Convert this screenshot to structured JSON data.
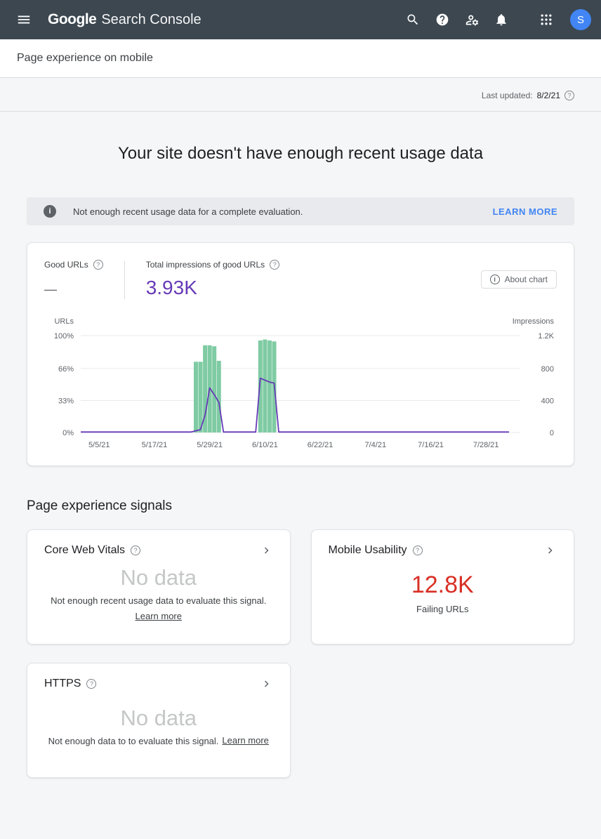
{
  "colors": {
    "header_bg": "#3C4750",
    "accent_blue": "#4285F4",
    "purple": "#673AB7",
    "no_data_gray": "#C4C7C5",
    "red": "#D93025",
    "green_bar": "#7FCBA3"
  },
  "glyphs": {
    "help": "?",
    "info": "i"
  },
  "topbar": {
    "logo_primary": "Google",
    "logo_secondary": "Search Console",
    "avatar_letter": "S"
  },
  "subheader": {
    "title": "Page experience on mobile"
  },
  "meta": {
    "last_updated_label": "Last updated:",
    "last_updated_value": "8/2/21"
  },
  "hero": {
    "title": "Your site doesn't have enough recent usage data"
  },
  "banner": {
    "message": "Not enough recent usage data for a complete evaluation.",
    "action_label": "LEARN MORE"
  },
  "chart_card": {
    "good_urls_label": "Good URLs",
    "good_urls_value": "—",
    "impressions_label": "Total impressions of good URLs",
    "impressions_value": "3.93K",
    "about_chart_label": "About chart"
  },
  "chart_data": {
    "type": "bar",
    "note": "bars = Good URLs (% of URLs, left axis), line = impressions of good URLs (right axis)",
    "x_domain_days": 93,
    "x_ticks": [
      {
        "label": "5/5/21",
        "day": 4
      },
      {
        "label": "5/17/21",
        "day": 16
      },
      {
        "label": "5/29/21",
        "day": 28
      },
      {
        "label": "6/10/21",
        "day": 40
      },
      {
        "label": "6/22/21",
        "day": 52
      },
      {
        "label": "7/4/21",
        "day": 64
      },
      {
        "label": "7/16/21",
        "day": 76
      },
      {
        "label": "7/28/21",
        "day": 88
      }
    ],
    "left_axis": {
      "title": "URLs",
      "ticks": [
        {
          "label": "100%",
          "pct": 100
        },
        {
          "label": "66%",
          "pct": 66
        },
        {
          "label": "33%",
          "pct": 33
        },
        {
          "label": "0%",
          "pct": 0
        }
      ]
    },
    "right_axis": {
      "title": "Impressions",
      "ticks": [
        {
          "label": "1.2K",
          "pct": 100
        },
        {
          "label": "800",
          "pct": 66
        },
        {
          "label": "400",
          "pct": 33
        },
        {
          "label": "0",
          "pct": 0
        }
      ]
    },
    "bars": {
      "name": "Good URLs",
      "color": "#7FCBA3",
      "points": [
        {
          "day": 25,
          "pct": 73
        },
        {
          "day": 26,
          "pct": 73
        },
        {
          "day": 27,
          "pct": 90
        },
        {
          "day": 28,
          "pct": 90
        },
        {
          "day": 29,
          "pct": 89
        },
        {
          "day": 30,
          "pct": 74
        },
        {
          "day": 39,
          "pct": 95
        },
        {
          "day": 40,
          "pct": 96
        },
        {
          "day": 41,
          "pct": 95
        },
        {
          "day": 42,
          "pct": 94
        }
      ]
    },
    "line": {
      "name": "Impressions of good URLs",
      "color": "#673AB7",
      "points": [
        {
          "day": 0,
          "pct": 0.5
        },
        {
          "day": 24,
          "pct": 0.5
        },
        {
          "day": 26,
          "pct": 3
        },
        {
          "day": 27,
          "pct": 18
        },
        {
          "day": 28,
          "pct": 46
        },
        {
          "day": 29,
          "pct": 39
        },
        {
          "day": 30,
          "pct": 31
        },
        {
          "day": 31,
          "pct": 0.5
        },
        {
          "day": 38,
          "pct": 0.5
        },
        {
          "day": 39,
          "pct": 56
        },
        {
          "day": 41,
          "pct": 52
        },
        {
          "day": 42,
          "pct": 51
        },
        {
          "day": 43,
          "pct": 0.5
        },
        {
          "day": 93,
          "pct": 0.5
        }
      ]
    }
  },
  "signals": {
    "heading": "Page experience signals",
    "cards": [
      {
        "title": "Core Web Vitals",
        "value": "No data",
        "value_color": "#C4C7C5",
        "description": "Not enough recent usage data to evaluate this signal.",
        "link_label": "Learn more"
      },
      {
        "title": "Mobile Usability",
        "value": "12.8K",
        "value_color": "#D93025",
        "description": "Failing URLs"
      },
      {
        "title": "HTTPS",
        "value": "No data",
        "value_color": "#C4C7C5",
        "description": "Not enough data to to evaluate this signal.",
        "link_label": "Learn more"
      }
    ]
  }
}
